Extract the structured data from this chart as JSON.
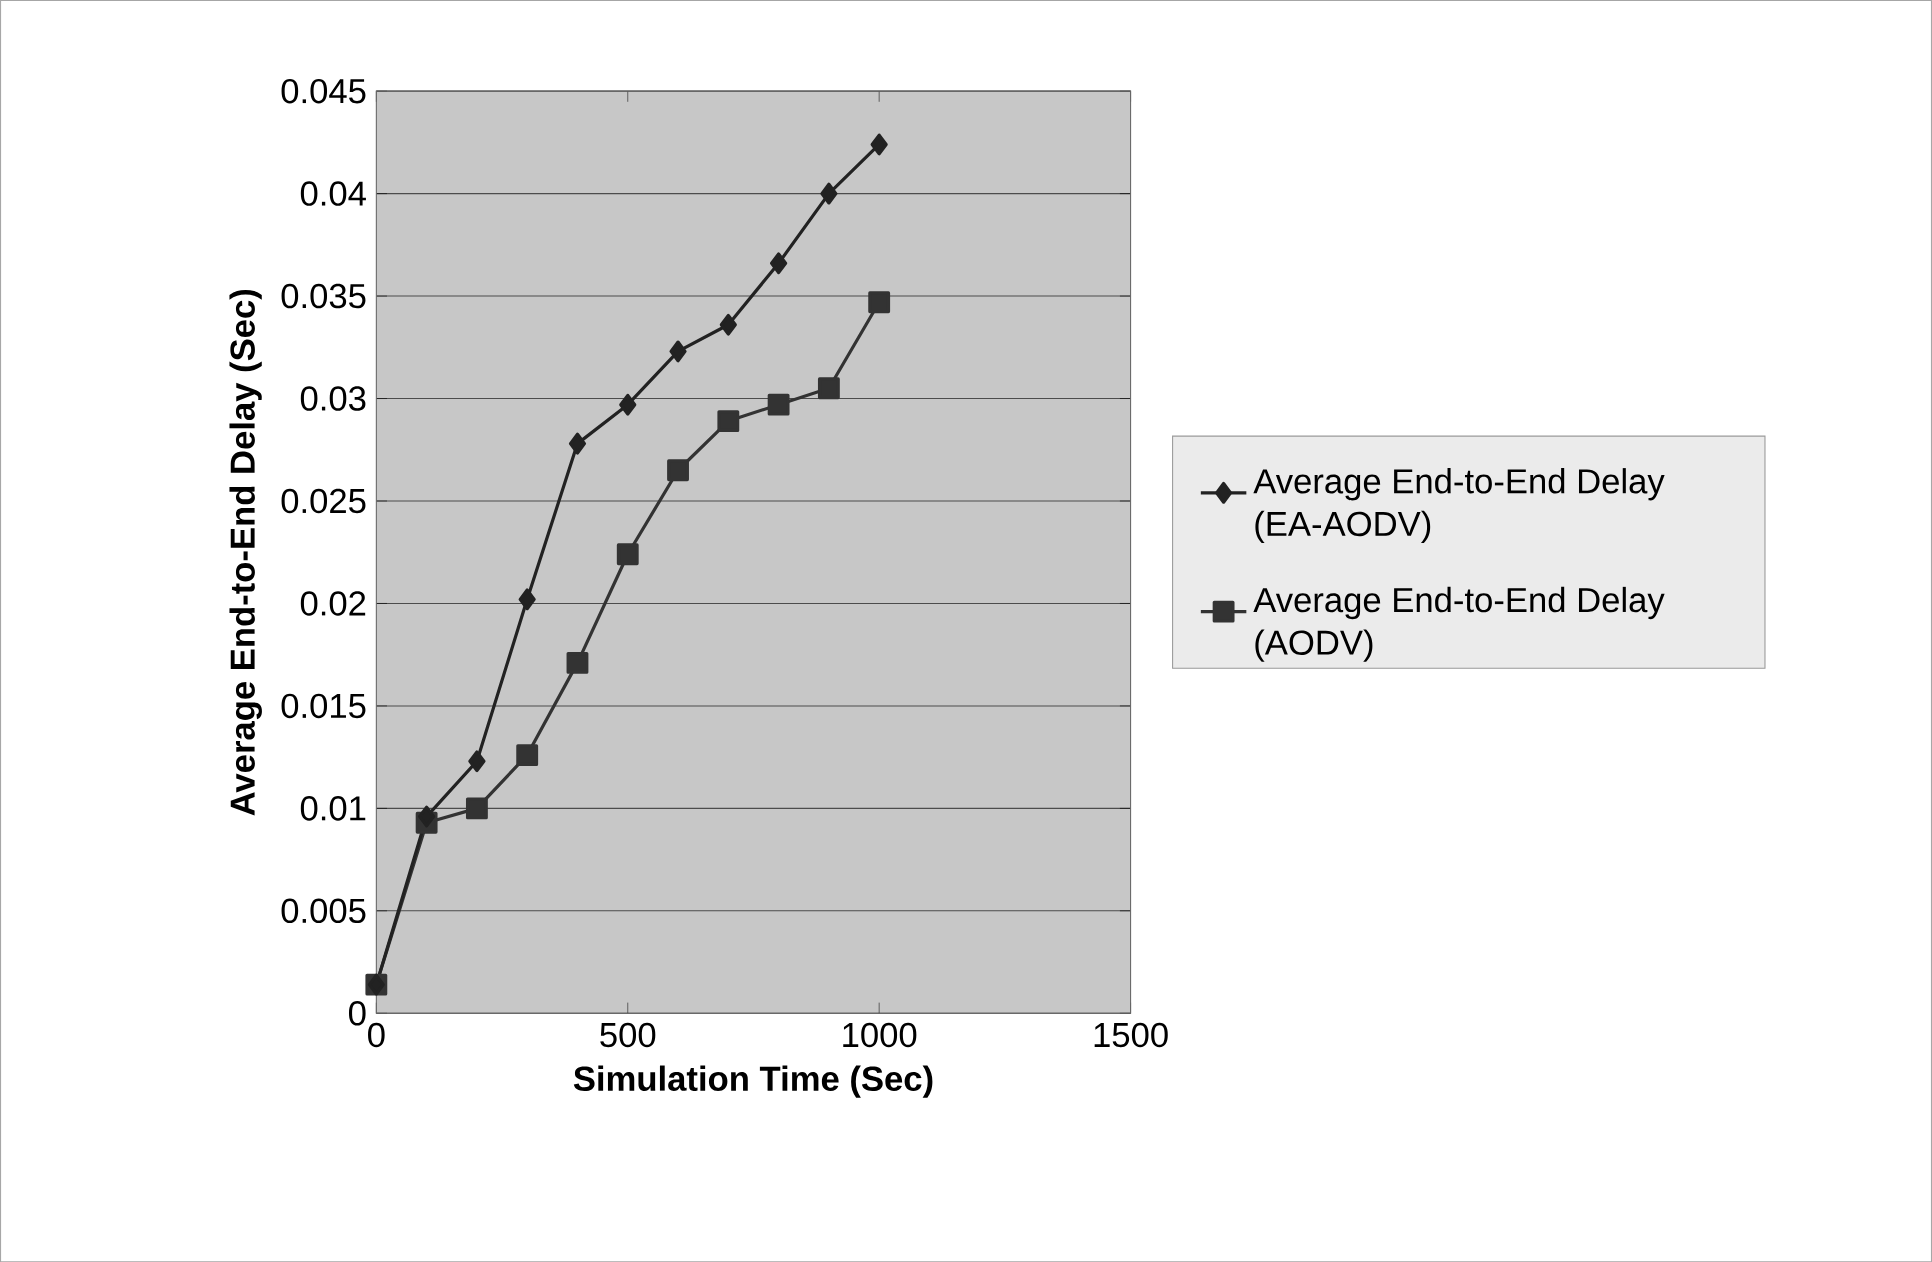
{
  "chart_data": {
    "type": "line",
    "xlabel": "Simulation Time (Sec)",
    "ylabel": "Average End-to-End Delay (Sec)",
    "x": [
      0,
      100,
      200,
      300,
      400,
      500,
      600,
      700,
      800,
      900,
      1000
    ],
    "series": [
      {
        "name": "Average End-to-End Delay (EA-AODV)",
        "color": "#222222",
        "marker": "diamond",
        "values": [
          0.0014,
          0.0096,
          0.0123,
          0.0202,
          0.0278,
          0.0297,
          0.0323,
          0.0336,
          0.0366,
          0.04,
          0.0424
        ]
      },
      {
        "name": "Average End-to-End Delay (AODV)",
        "color": "#333333",
        "marker": "square",
        "values": [
          0.0014,
          0.0093,
          0.01,
          0.0126,
          0.0171,
          0.0224,
          0.0265,
          0.0289,
          0.0297,
          0.0305,
          0.0347
        ]
      }
    ],
    "xlim": [
      0,
      1500
    ],
    "xticks": [
      0,
      500,
      1000,
      1500
    ],
    "ylim": [
      0,
      0.045
    ],
    "yticks": [
      0,
      0.005,
      0.01,
      0.015,
      0.02,
      0.025,
      0.03,
      0.035,
      0.04,
      0.045
    ],
    "grid": "y",
    "legend": "right",
    "line_style": "solid"
  }
}
